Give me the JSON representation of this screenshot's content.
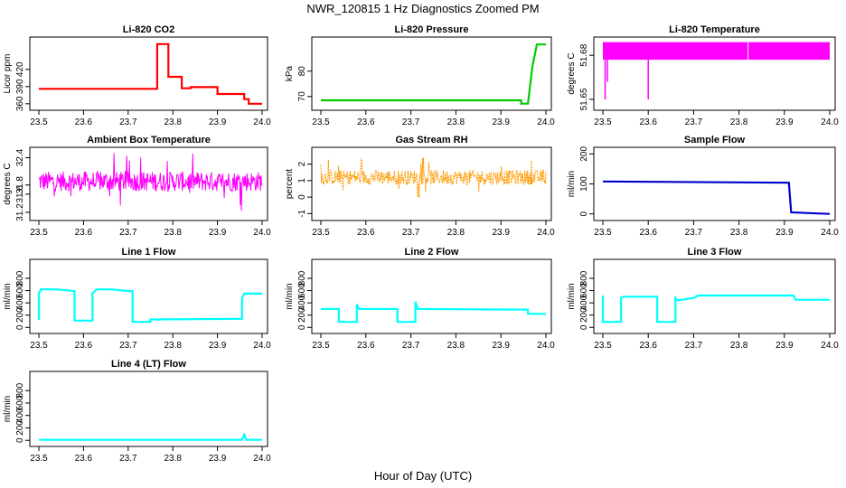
{
  "figure": {
    "title": "NWR_120815  1 Hz Diagnostics Zoomed PM",
    "xlabel": "Hour of Day (UTC)"
  },
  "chart_data": [
    {
      "type": "line",
      "title": "Li-820 CO2",
      "ylabel": "Licor ppm",
      "color": "#ff0000",
      "xlim": [
        23.5,
        24.0
      ],
      "ylim": [
        355,
        470
      ],
      "yticks": [
        "360",
        "390",
        "420"
      ],
      "xticks": [
        "23.5",
        "23.6",
        "23.7",
        "23.8",
        "23.9",
        "24.0"
      ],
      "x": [
        23.5,
        23.765,
        23.765,
        23.79,
        23.79,
        23.82,
        23.82,
        23.84,
        23.84,
        23.9,
        23.9,
        23.96,
        23.96,
        23.97,
        23.97,
        24.0
      ],
      "y": [
        386,
        386,
        464,
        464,
        407,
        407,
        387,
        387,
        389,
        389,
        377,
        377,
        368,
        368,
        360,
        360
      ]
    },
    {
      "type": "line",
      "title": "Li-820 Pressure",
      "ylabel": "kPa",
      "color": "#00cc00",
      "xlim": [
        23.5,
        24.0
      ],
      "ylim": [
        66,
        92
      ],
      "yticks": [
        "70",
        "80"
      ],
      "xticks": [
        "23.5",
        "23.6",
        "23.7",
        "23.8",
        "23.9",
        "24.0"
      ],
      "x": [
        23.5,
        23.945,
        23.945,
        23.96,
        23.97,
        23.98,
        24.0
      ],
      "y": [
        68.5,
        68.5,
        67.2,
        67.2,
        82,
        90.5,
        90.5
      ]
    },
    {
      "type": "line",
      "title": "Li-820 Temperature",
      "ylabel": "degrees C",
      "color": "#ff00ff",
      "xlim": [
        23.5,
        24.0
      ],
      "ylim": [
        51.645,
        51.69
      ],
      "yticks": [
        "51.65",
        "51.68"
      ],
      "xticks": [
        "23.5",
        "23.6",
        "23.7",
        "23.8",
        "23.9",
        "24.0"
      ],
      "band": [
        51.677,
        51.689
      ],
      "dips_x": [
        23.505,
        23.51,
        23.6
      ],
      "dips_y": [
        51.65,
        51.662,
        51.65
      ]
    },
    {
      "type": "line",
      "title": "Ambient Box Temperature",
      "ylabel": "degrees C",
      "color": "#ff00ff",
      "xlim": [
        23.5,
        24.0
      ],
      "ylim": [
        31.1,
        32.55
      ],
      "yticks": [
        "31.2",
        "31.6",
        "31.8",
        "32.4"
      ],
      "xticks": [
        "23.5",
        "23.6",
        "23.7",
        "23.8",
        "23.9",
        "24.0"
      ],
      "noise": {
        "mean": 31.88,
        "amp": 0.22,
        "min": 31.15,
        "max": 32.5
      }
    },
    {
      "type": "line",
      "title": "Gas Stream RH",
      "ylabel": "percent",
      "color": "#ff9900",
      "xlim": [
        23.5,
        24.0
      ],
      "ylim": [
        -1.2,
        2.8
      ],
      "yticks": [
        "-1",
        "0",
        "1",
        "2"
      ],
      "xticks": [
        "23.5",
        "23.6",
        "23.7",
        "23.8",
        "23.9",
        "24.0"
      ],
      "noise": {
        "mean": 1.2,
        "amp": 0.45,
        "min": -0.8,
        "max": 2.6
      }
    },
    {
      "type": "line",
      "title": "Sample Flow",
      "ylabel": "ml/min",
      "color": "#0000cc",
      "xlim": [
        23.5,
        24.0
      ],
      "ylim": [
        -10,
        210
      ],
      "yticks": [
        "0",
        "100",
        "200"
      ],
      "xticks": [
        "23.5",
        "23.6",
        "23.7",
        "23.8",
        "23.9",
        "24.0"
      ],
      "x": [
        23.5,
        23.91,
        23.91,
        23.915,
        24.0
      ],
      "y": [
        108,
        104,
        104,
        5,
        0
      ]
    },
    {
      "type": "line",
      "title": "Line 1 Flow",
      "ylabel": "ml/min",
      "color": "#00ffff",
      "xlim": [
        23.5,
        24.0
      ],
      "ylim": [
        -40,
        1050
      ],
      "yticks": [
        "0",
        "200",
        "400",
        "600",
        "800"
      ],
      "xticks": [
        "23.5",
        "23.6",
        "23.7",
        "23.8",
        "23.9",
        "24.0"
      ],
      "x": [
        23.5,
        23.5,
        23.505,
        23.54,
        23.58,
        23.58,
        23.62,
        23.62,
        23.63,
        23.66,
        23.705,
        23.71,
        23.71,
        23.75,
        23.75,
        23.955,
        23.955,
        23.96,
        24.0
      ],
      "y": [
        120,
        560,
        620,
        620,
        590,
        110,
        110,
        560,
        620,
        620,
        590,
        590,
        90,
        90,
        130,
        140,
        480,
        550,
        550
      ]
    },
    {
      "type": "line",
      "title": "Line 2 Flow",
      "ylabel": "ml/min",
      "color": "#00ffff",
      "xlim": [
        23.5,
        24.0
      ],
      "ylim": [
        -40,
        1050
      ],
      "yticks": [
        "0",
        "200",
        "400",
        "600",
        "800"
      ],
      "xticks": [
        "23.5",
        "23.6",
        "23.7",
        "23.8",
        "23.9",
        "24.0"
      ],
      "x": [
        23.5,
        23.54,
        23.54,
        23.58,
        23.58,
        23.585,
        23.67,
        23.67,
        23.71,
        23.71,
        23.715,
        23.96,
        23.96,
        24.0
      ],
      "y": [
        300,
        300,
        90,
        90,
        380,
        300,
        300,
        90,
        90,
        420,
        300,
        290,
        220,
        220
      ]
    },
    {
      "type": "line",
      "title": "Line 3 Flow",
      "ylabel": "ml/min",
      "color": "#00ffff",
      "xlim": [
        23.5,
        24.0
      ],
      "ylim": [
        -40,
        1050
      ],
      "yticks": [
        "0",
        "200",
        "400",
        "600",
        "800"
      ],
      "xticks": [
        "23.5",
        "23.6",
        "23.7",
        "23.8",
        "23.9",
        "24.0"
      ],
      "x": [
        23.5,
        23.5,
        23.505,
        23.54,
        23.54,
        23.545,
        23.62,
        23.62,
        23.66,
        23.66,
        23.665,
        23.7,
        23.71,
        23.92,
        23.925,
        24.0
      ],
      "y": [
        520,
        90,
        90,
        90,
        480,
        500,
        500,
        90,
        90,
        480,
        440,
        480,
        520,
        520,
        450,
        450
      ]
    },
    {
      "type": "line",
      "title": "Line 4 (LT) Flow",
      "ylabel": "ml/min",
      "color": "#00ffff",
      "xlim": [
        23.5,
        24.0
      ],
      "ylim": [
        -40,
        1050
      ],
      "yticks": [
        "0",
        "200",
        "400",
        "600",
        "800"
      ],
      "xticks": [
        "23.5",
        "23.6",
        "23.7",
        "23.8",
        "23.9",
        "24.0"
      ],
      "x": [
        23.5,
        23.955,
        23.96,
        23.965,
        24.0
      ],
      "y": [
        8,
        8,
        90,
        8,
        8
      ]
    }
  ]
}
